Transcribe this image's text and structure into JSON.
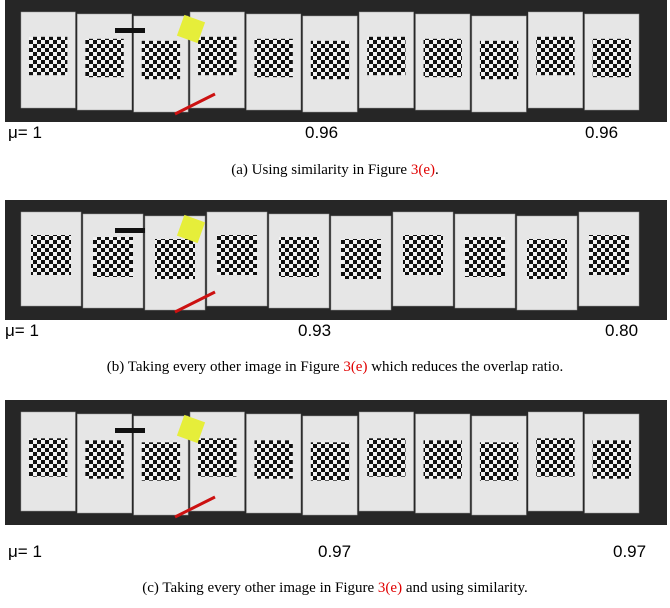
{
  "panels": [
    {
      "labels": [
        "μ= 1",
        "0.96",
        "0.96"
      ],
      "caption": {
        "tag": "(a)",
        "before": "Using similarity in Figure",
        "ref": "3(e)",
        "after": "."
      }
    },
    {
      "labels": [
        "μ= 1",
        "0.93",
        "0.80"
      ],
      "caption": {
        "tag": "(b)",
        "before": "Taking every other image in Figure",
        "ref": "3(e)",
        "after": "which reduces the overlap ratio."
      }
    },
    {
      "labels": [
        "μ= 1",
        "0.97",
        "0.97"
      ],
      "caption": {
        "tag": "(c)",
        "before": "Taking every other image in Figure",
        "ref": "3(e)",
        "after": "and using similarity."
      }
    }
  ]
}
